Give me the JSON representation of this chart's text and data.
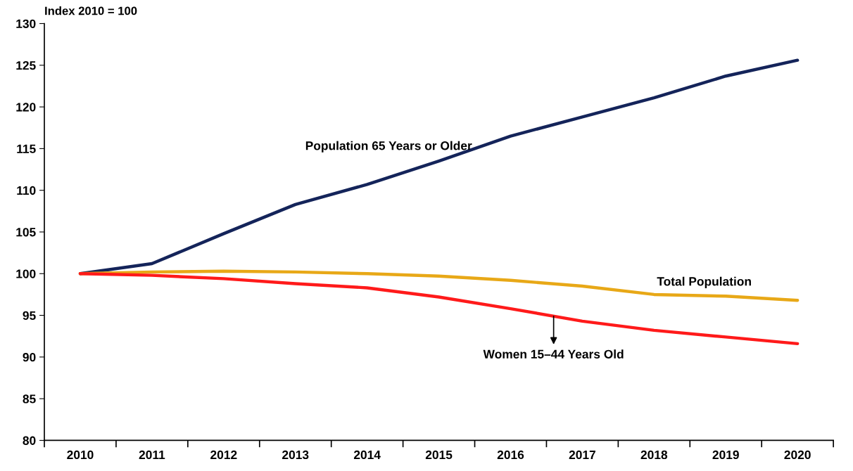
{
  "chart_data": {
    "type": "line",
    "ylabel": "Index 2010 = 100",
    "categories": [
      "2010",
      "2011",
      "2012",
      "2013",
      "2014",
      "2015",
      "2016",
      "2017",
      "2018",
      "2019",
      "2020"
    ],
    "series": [
      {
        "name": "Population 65 Years or Older",
        "color": "#14245a",
        "values": [
          100,
          101.2,
          104.8,
          108.3,
          110.7,
          113.5,
          116.5,
          118.8,
          121.1,
          123.7,
          125.6
        ]
      },
      {
        "name": "Total Population",
        "color": "#e8a817",
        "values": [
          100,
          100.2,
          100.3,
          100.2,
          100.0,
          99.7,
          99.2,
          98.5,
          97.5,
          97.3,
          96.8
        ]
      },
      {
        "name": "Women 15–44 Years Old",
        "color": "#ff1a1a",
        "values": [
          100,
          99.8,
          99.4,
          98.8,
          98.3,
          97.2,
          95.8,
          94.3,
          93.2,
          92.4,
          91.6
        ]
      }
    ],
    "ylim": [
      80,
      130
    ],
    "yticks": [
      80,
      85,
      90,
      95,
      100,
      105,
      110,
      115,
      120,
      125,
      130
    ],
    "grid": false,
    "legend": false,
    "marker": "none",
    "line_style": "solid"
  }
}
